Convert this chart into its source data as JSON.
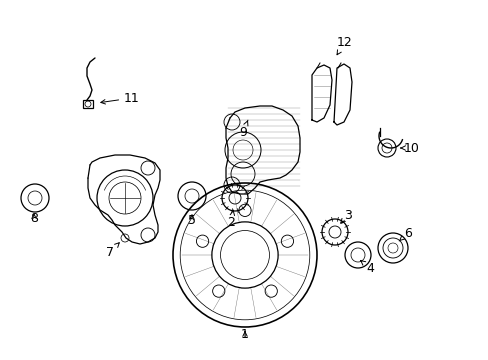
{
  "background_color": "#ffffff",
  "fig_width": 4.89,
  "fig_height": 3.6,
  "dpi": 100,
  "line_color": "#000000",
  "text_color": "#000000",
  "label_fontsize": 9
}
